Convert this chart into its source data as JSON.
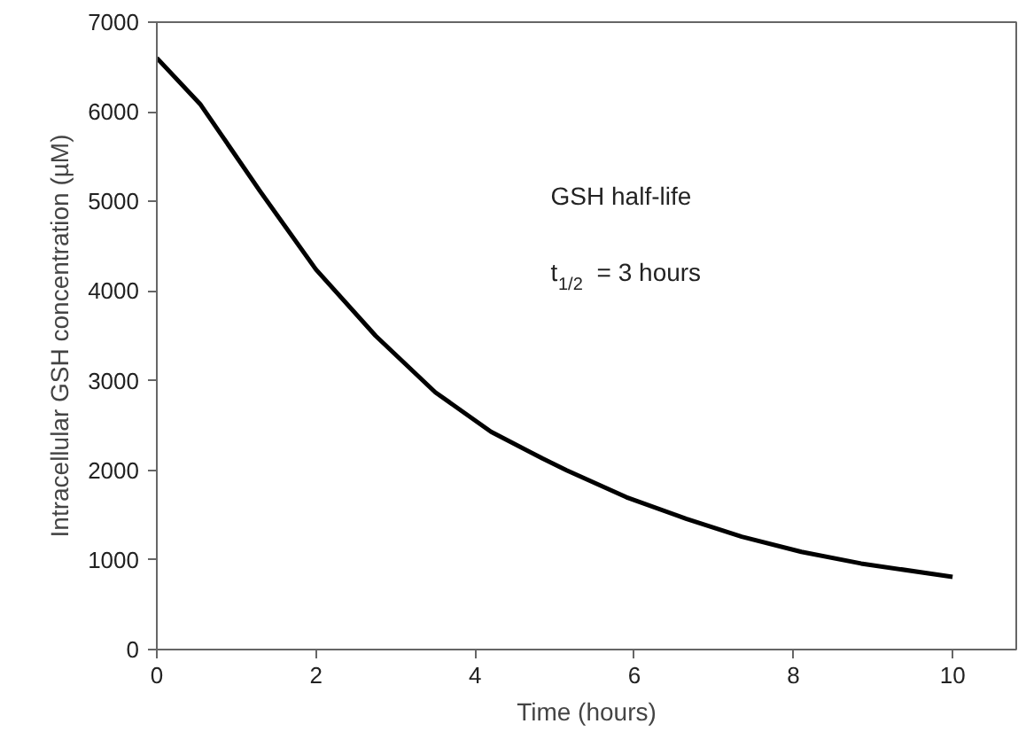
{
  "chart_data": {
    "type": "line",
    "xlabel": "Time (hours)",
    "ylabel": "Intracellular GSH concentration (µM)",
    "x": [
      0,
      0.55,
      1.3,
      2,
      2.75,
      3.5,
      4.2,
      4.85,
      5.15,
      5.9,
      6.65,
      7.35,
      8.1,
      8.85,
      10
    ],
    "series": [
      {
        "color": "#000000",
        "values": [
          6600,
          6080,
          5110,
          4240,
          3500,
          2870,
          2430,
          2130,
          2000,
          1700,
          1460,
          1260,
          1090,
          960,
          810
        ]
      }
    ],
    "xlim": [
      0,
      10.8
    ],
    "ylim": [
      0,
      7000
    ],
    "xticks": [
      0,
      2,
      4,
      6,
      8,
      10
    ],
    "yticks": [
      0,
      1000,
      2000,
      3000,
      4000,
      5000,
      6000,
      7000
    ],
    "annotations": [
      "GSH half-life",
      "t$_{1/2}$ = 3 hours"
    ],
    "grid": false,
    "marker": "none",
    "line_style": "solid"
  }
}
